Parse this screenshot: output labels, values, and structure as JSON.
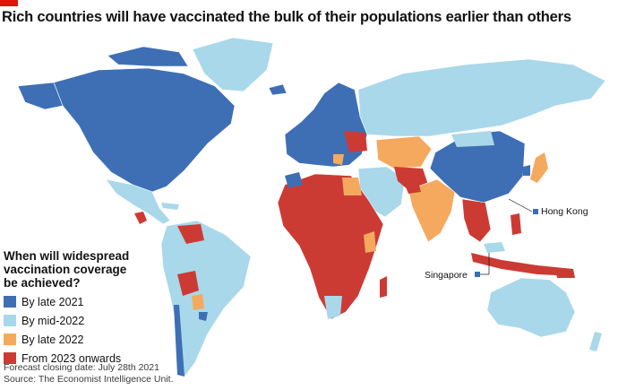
{
  "title": "Rich countries will have vaccinated the bulk of their populations earlier than others",
  "legend": {
    "title_lines": [
      "When will widespread",
      "vaccination coverage",
      "be achieved?"
    ],
    "items": [
      {
        "label": "By late 2021",
        "color": "#3e6fb5"
      },
      {
        "label": "By mid-2022",
        "color": "#a9d8ea"
      },
      {
        "label": "By late 2022",
        "color": "#f5a95f"
      },
      {
        "label": "From 2023 onwards",
        "color": "#cc3b33"
      }
    ]
  },
  "annotations": {
    "hong_kong": "Hong Kong",
    "singapore": "Singapore"
  },
  "footnote": {
    "line1": "Forecast closing date: July 28th 2021",
    "line2": "Source: The Economist Intelligence Unit."
  }
}
